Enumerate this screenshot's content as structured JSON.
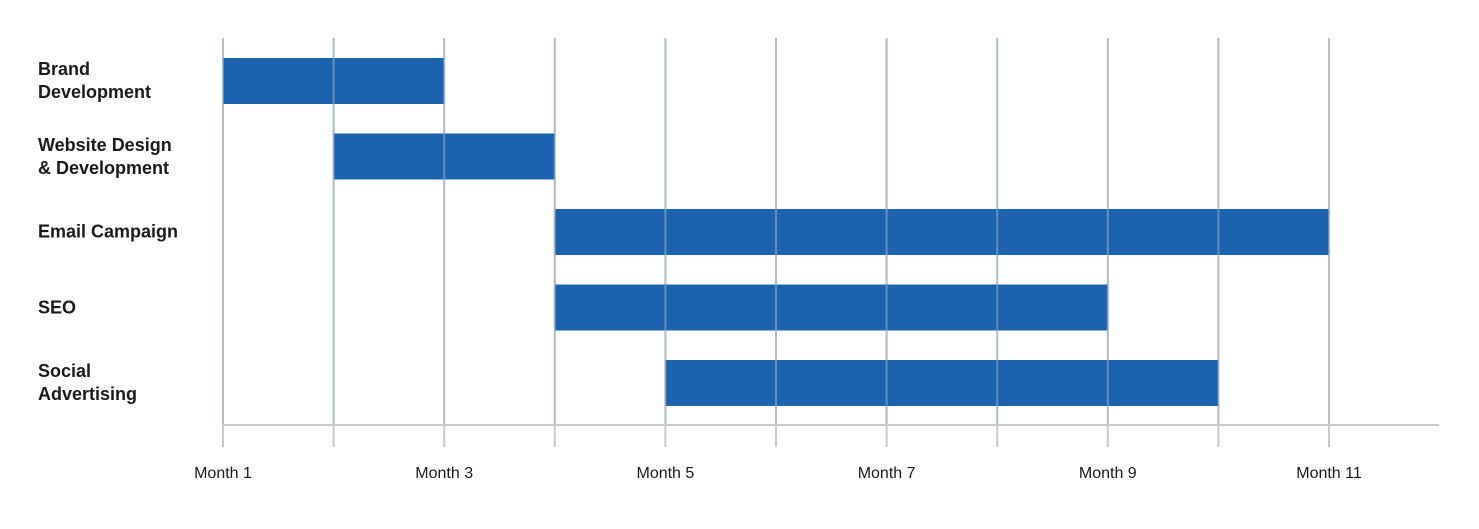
{
  "chart_data": {
    "type": "gantt",
    "title": "",
    "xlabel": "",
    "ylabel": "",
    "x_unit": "month",
    "xlim": [
      1,
      12
    ],
    "x_ticks": [
      1,
      2,
      3,
      4,
      5,
      6,
      7,
      8,
      9,
      10,
      11
    ],
    "tick_labels": [
      {
        "month": 1,
        "label": "Month 1"
      },
      {
        "month": 3,
        "label": "Month 3"
      },
      {
        "month": 5,
        "label": "Month 5"
      },
      {
        "month": 7,
        "label": "Month 7"
      },
      {
        "month": 9,
        "label": "Month 9"
      },
      {
        "month": 11,
        "label": "Month 11"
      }
    ],
    "grid": true,
    "tasks": [
      {
        "name": "Brand\nDevelopment",
        "start": 1,
        "end": 3
      },
      {
        "name": "Website Design\n& Development",
        "start": 2,
        "end": 4
      },
      {
        "name": "Email Campaign",
        "start": 4,
        "end": 11
      },
      {
        "name": "SEO",
        "start": 4,
        "end": 9
      },
      {
        "name": "Social\nAdvertising",
        "start": 5,
        "end": 10
      }
    ],
    "colors": {
      "bar": "#1b63ae",
      "grid": "#c8c8c8",
      "text": "#1a1a1a"
    }
  }
}
